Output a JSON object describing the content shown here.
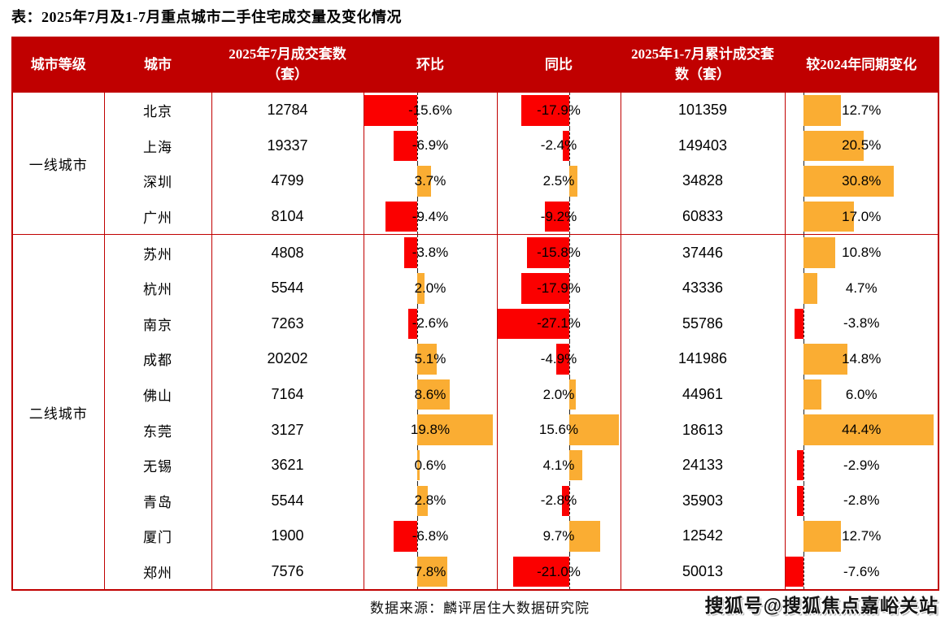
{
  "title": "表：2025年7月及1-7月重点城市二手住宅成交量及变化情况",
  "source": "数据来源：麟评居住大数据研究院",
  "watermark": "搜狐号@搜狐焦点嘉峪关站",
  "colors": {
    "header_bg": "#c00000",
    "border": "#c00000",
    "negative_bar": "#fb0000",
    "positive_bar": "#faad33",
    "header_text": "#ffffff",
    "body_text": "#000000"
  },
  "chart_data": {
    "type": "table",
    "title": "2025年7月及1-7月重点城市二手住宅成交量及变化情况",
    "columns": [
      "城市等级",
      "城市",
      "2025年7月成交套数（套）",
      "环比",
      "同比",
      "2025年1-7月累计成交套数（套）",
      "较2024年同期变化"
    ],
    "tiers": [
      {
        "label": "一线城市",
        "row_count": 4
      },
      {
        "label": "二线城市",
        "row_count": 10
      }
    ],
    "rows": [
      {
        "city": "北京",
        "july_units": "12784",
        "mom": -15.6,
        "mom_label": "-15.6%",
        "yoy": -17.9,
        "yoy_label": "-17.9%",
        "cum_units": "101359",
        "vs2024": 12.7,
        "vs2024_label": "12.7%"
      },
      {
        "city": "上海",
        "july_units": "19337",
        "mom": -6.9,
        "mom_label": "-6.9%",
        "yoy": -2.4,
        "yoy_label": "-2.4%",
        "cum_units": "149403",
        "vs2024": 20.5,
        "vs2024_label": "20.5%"
      },
      {
        "city": "深圳",
        "july_units": "4799",
        "mom": 3.7,
        "mom_label": "3.7%",
        "yoy": 2.5,
        "yoy_label": "2.5%",
        "cum_units": "34828",
        "vs2024": 30.8,
        "vs2024_label": "30.8%"
      },
      {
        "city": "广州",
        "july_units": "8104",
        "mom": -9.4,
        "mom_label": "-9.4%",
        "yoy": -9.2,
        "yoy_label": "-9.2%",
        "cum_units": "60833",
        "vs2024": 17.0,
        "vs2024_label": "17.0%"
      },
      {
        "city": "苏州",
        "july_units": "4808",
        "mom": -3.8,
        "mom_label": "-3.8%",
        "yoy": -15.8,
        "yoy_label": "-15.8%",
        "cum_units": "37446",
        "vs2024": 10.8,
        "vs2024_label": "10.8%"
      },
      {
        "city": "杭州",
        "july_units": "5544",
        "mom": 2.0,
        "mom_label": "2.0%",
        "yoy": -17.9,
        "yoy_label": "-17.9%",
        "cum_units": "43336",
        "vs2024": 4.7,
        "vs2024_label": "4.7%"
      },
      {
        "city": "南京",
        "july_units": "7263",
        "mom": -2.6,
        "mom_label": "-2.6%",
        "yoy": -27.1,
        "yoy_label": "-27.1%",
        "cum_units": "55786",
        "vs2024": -3.8,
        "vs2024_label": "-3.8%"
      },
      {
        "city": "成都",
        "july_units": "20202",
        "mom": 5.1,
        "mom_label": "5.1%",
        "yoy": -4.9,
        "yoy_label": "-4.9%",
        "cum_units": "141986",
        "vs2024": 14.8,
        "vs2024_label": "14.8%"
      },
      {
        "city": "佛山",
        "july_units": "7164",
        "mom": 8.6,
        "mom_label": "8.6%",
        "yoy": 2.0,
        "yoy_label": "2.0%",
        "cum_units": "44961",
        "vs2024": 6.0,
        "vs2024_label": "6.0%"
      },
      {
        "city": "东莞",
        "july_units": "3127",
        "mom": 19.8,
        "mom_label": "19.8%",
        "yoy": 15.6,
        "yoy_label": "15.6%",
        "cum_units": "18613",
        "vs2024": 44.4,
        "vs2024_label": "44.4%"
      },
      {
        "city": "无锡",
        "july_units": "3621",
        "mom": 0.6,
        "mom_label": "0.6%",
        "yoy": 4.1,
        "yoy_label": "4.1%",
        "cum_units": "24133",
        "vs2024": -2.9,
        "vs2024_label": "-2.9%"
      },
      {
        "city": "青岛",
        "july_units": "5544",
        "mom": 2.8,
        "mom_label": "2.8%",
        "yoy": -2.8,
        "yoy_label": "-2.8%",
        "cum_units": "35903",
        "vs2024": -2.8,
        "vs2024_label": "-2.8%"
      },
      {
        "city": "厦门",
        "july_units": "1900",
        "mom": -6.8,
        "mom_label": "-6.8%",
        "yoy": 9.7,
        "yoy_label": "9.7%",
        "cum_units": "12542",
        "vs2024": 12.7,
        "vs2024_label": "12.7%"
      },
      {
        "city": "郑州",
        "july_units": "7576",
        "mom": 7.8,
        "mom_label": "7.8%",
        "yoy": -21.0,
        "yoy_label": "-21.0%",
        "cum_units": "50013",
        "vs2024": -7.6,
        "vs2024_label": "-7.6%"
      }
    ],
    "bar_columns": {
      "mom": {
        "axis_pct": 40.0,
        "neg_scale": 2.55,
        "pos_scale": 2.9
      },
      "yoy": {
        "axis_pct": 58.5,
        "neg_scale": 2.16,
        "pos_scale": 2.6
      },
      "vs2024": {
        "axis_pct": 12.2,
        "neg_scale": 1.6,
        "pos_scale": 1.92
      }
    }
  }
}
